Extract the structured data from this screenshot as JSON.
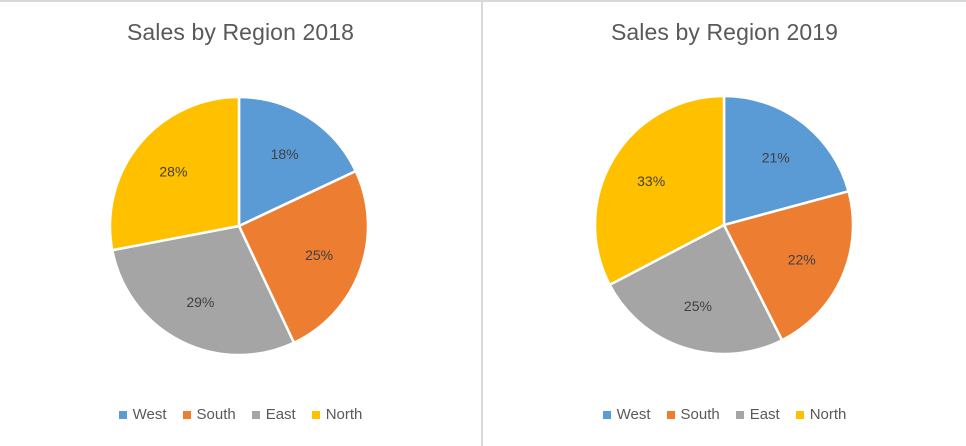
{
  "colors": {
    "West": "#5b9bd5",
    "South": "#ed7d31",
    "East": "#a5a5a5",
    "North": "#ffc000",
    "frame": "#d9d9d9",
    "title_text": "#595959",
    "label_text": "#404040"
  },
  "charts": [
    {
      "title": "Sales by Region 2018",
      "legend": [
        "West",
        "South",
        "East",
        "North"
      ],
      "slices": [
        {
          "label": "West",
          "value": 18,
          "display": "18%"
        },
        {
          "label": "South",
          "value": 25,
          "display": "25%"
        },
        {
          "label": "East",
          "value": 29,
          "display": "29%"
        },
        {
          "label": "North",
          "value": 28,
          "display": "28%"
        }
      ]
    },
    {
      "title": "Sales by Region 2019",
      "legend": [
        "West",
        "South",
        "East",
        "North"
      ],
      "slices": [
        {
          "label": "West",
          "value": 21,
          "display": "21%"
        },
        {
          "label": "South",
          "value": 22,
          "display": "22%"
        },
        {
          "label": "East",
          "value": 25,
          "display": "25%"
        },
        {
          "label": "North",
          "value": 33,
          "display": "33%"
        }
      ]
    }
  ],
  "chart_data": [
    {
      "type": "pie",
      "title": "Sales by Region 2018",
      "categories": [
        "West",
        "South",
        "East",
        "North"
      ],
      "values": [
        18,
        25,
        29,
        28
      ],
      "unit": "%",
      "start_angle": "12 o'clock, clockwise",
      "legend_position": "bottom",
      "data_labels": [
        "18%",
        "25%",
        "29%",
        "28%"
      ]
    },
    {
      "type": "pie",
      "title": "Sales by Region 2019",
      "categories": [
        "West",
        "South",
        "East",
        "North"
      ],
      "values": [
        21,
        22,
        25,
        33
      ],
      "unit": "%",
      "start_angle": "12 o'clock, clockwise",
      "legend_position": "bottom",
      "data_labels": [
        "21%",
        "22%",
        "25%",
        "33%"
      ]
    }
  ]
}
